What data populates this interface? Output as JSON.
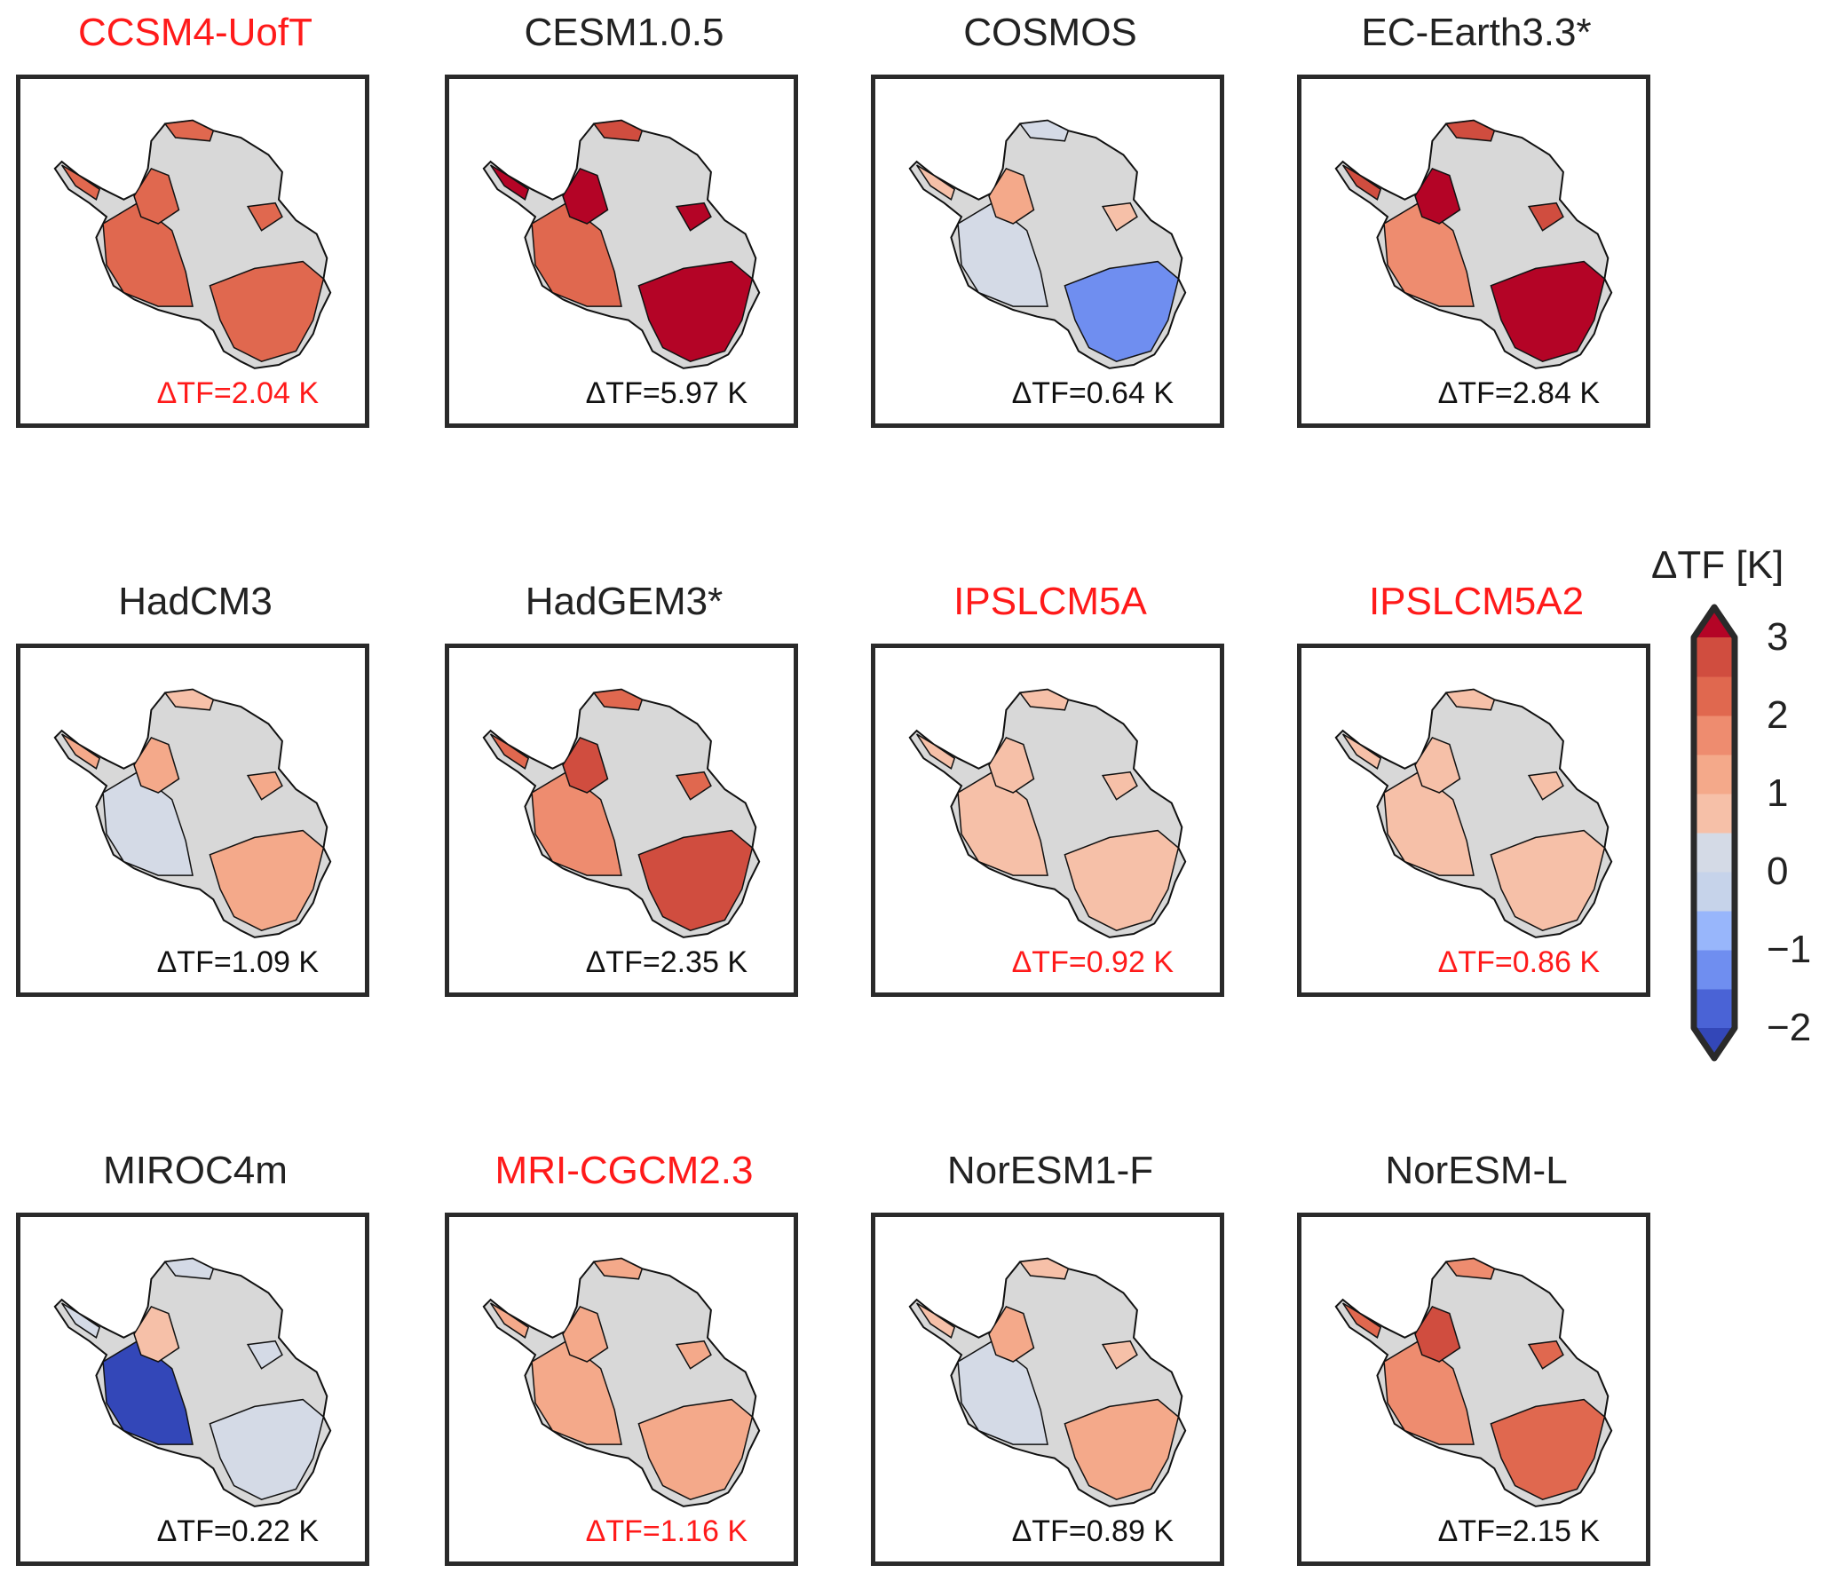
{
  "chart_data": {
    "type": "heatmap",
    "title": "",
    "description": "Small-multiple maps of Antarctica showing change in thermal forcing per climate model",
    "colorbar": {
      "label": "ΔTF [K]",
      "min": -2,
      "max": 3,
      "step": 0.5,
      "extend": "both",
      "ticks": [
        "3",
        "2",
        "1",
        "0",
        "−1",
        "−2"
      ],
      "colors": [
        "#3b4cc0",
        "#5b7ae0",
        "#7fa2f5",
        "#a9c5fc",
        "#d0dae8",
        "#f6bfa6",
        "#f4a789",
        "#ec8a6c",
        "#de6a52",
        "#cc4a3c",
        "#b40426"
      ],
      "over_color": "#b40426",
      "under_color": "#3b4cc0"
    },
    "land_color": "#d8d8d8",
    "panels": [
      {
        "model": "CCSM4-UofT",
        "dtf_label": "ΔTF=2.04 K",
        "dtf": 2.04,
        "highlight": true,
        "pattern": "uniform",
        "base": 2.04
      },
      {
        "model": "CESM1.0.5",
        "dtf_label": "ΔTF=5.97 K",
        "dtf": 5.97,
        "highlight": false,
        "pattern": "strong",
        "base": 3.2
      },
      {
        "model": "COSMOS",
        "dtf_label": "ΔTF=0.64 K",
        "dtf": 0.64,
        "highlight": false,
        "pattern": "mixed",
        "base": 0.64
      },
      {
        "model": "EC-Earth3.3*",
        "dtf_label": "ΔTF=2.84 K",
        "dtf": 2.84,
        "highlight": false,
        "pattern": "strong",
        "base": 2.84
      },
      {
        "model": "HadCM3",
        "dtf_label": "ΔTF=1.09 K",
        "dtf": 1.09,
        "highlight": false,
        "pattern": "varied",
        "base": 1.09
      },
      {
        "model": "HadGEM3*",
        "dtf_label": "ΔTF=2.35 K",
        "dtf": 2.35,
        "highlight": false,
        "pattern": "varied",
        "base": 2.35
      },
      {
        "model": "IPSLCM5A",
        "dtf_label": "ΔTF=0.92 K",
        "dtf": 0.92,
        "highlight": true,
        "pattern": "uniform",
        "base": 0.92
      },
      {
        "model": "IPSLCM5A2",
        "dtf_label": "ΔTF=0.86 K",
        "dtf": 0.86,
        "highlight": true,
        "pattern": "uniform",
        "base": 0.86
      },
      {
        "model": "MIROC4m",
        "dtf_label": "ΔTF=0.22 K",
        "dtf": 0.22,
        "highlight": false,
        "pattern": "cold-west",
        "base": 0.22
      },
      {
        "model": "MRI-CGCM2.3",
        "dtf_label": "ΔTF=1.16 K",
        "dtf": 1.16,
        "highlight": true,
        "pattern": "uniform",
        "base": 1.16
      },
      {
        "model": "NorESM1-F",
        "dtf_label": "ΔTF=0.89 K",
        "dtf": 0.89,
        "highlight": false,
        "pattern": "varied",
        "base": 0.89
      },
      {
        "model": "NorESM-L",
        "dtf_label": "ΔTF=2.15 K",
        "dtf": 2.15,
        "highlight": false,
        "pattern": "varied",
        "base": 2.15
      }
    ]
  },
  "colors": {
    "highlight": "#ff1a1a",
    "text": "#222222",
    "frame": "#2a2a2a"
  }
}
